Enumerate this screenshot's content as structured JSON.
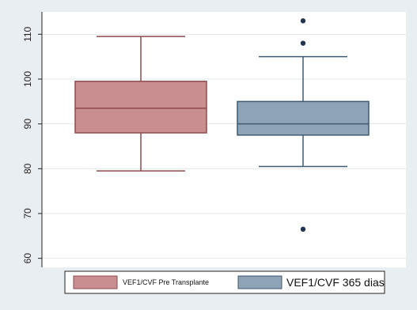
{
  "chart_data": {
    "type": "box",
    "grid": true,
    "ylim": [
      58,
      115
    ],
    "yticks": [
      60,
      70,
      80,
      90,
      100,
      110
    ],
    "legend_position": "bottom",
    "series": [
      {
        "name": "VEF1/CVF  Pre Transplante",
        "color": "#c98f90",
        "stroke": "#8f4a4c",
        "whisker_low": 79.5,
        "q1": 88,
        "median": 93.5,
        "q3": 99.5,
        "whisker_high": 109.5,
        "outliers": []
      },
      {
        "name": "VEF1/CVF 365 dias",
        "color": "#8ea3b6",
        "stroke": "#3f5a72",
        "whisker_low": 80.5,
        "q1": 87.5,
        "median": 90,
        "q3": 95,
        "whisker_high": 105,
        "outliers": [
          113,
          108,
          66.5
        ]
      }
    ]
  }
}
